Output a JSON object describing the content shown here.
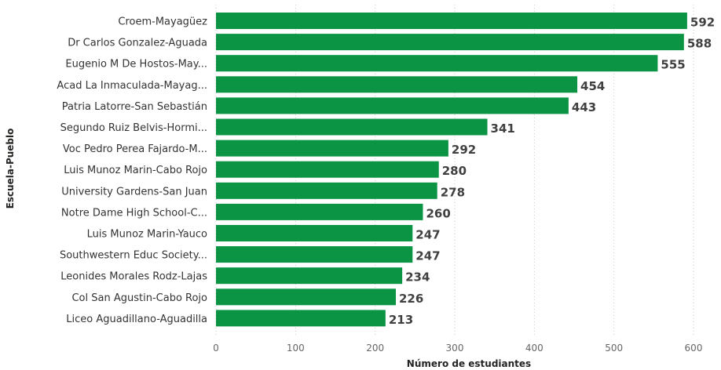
{
  "chart_data": {
    "type": "bar",
    "orientation": "horizontal",
    "categories": [
      "Croem-Mayagüez",
      "Dr Carlos Gonzalez-Aguada",
      "Eugenio M De Hostos-May...",
      "Acad La Inmaculada-Mayag...",
      "Patria Latorre-San Sebastián",
      "Segundo Ruiz Belvis-Hormi...",
      "Voc Pedro Perea Fajardo-M...",
      "Luis Munoz Marin-Cabo Rojo",
      "University Gardens-San Juan",
      "Notre Dame High School-C...",
      "Luis Munoz Marin-Yauco",
      "Southwestern Educ Society...",
      "Leonides Morales Rodz-Lajas",
      "Col San Agustin-Cabo Rojo",
      "Liceo Aguadillano-Aguadilla"
    ],
    "values": [
      592,
      588,
      555,
      454,
      443,
      341,
      292,
      280,
      278,
      260,
      247,
      247,
      234,
      226,
      213
    ],
    "xlabel": "Número de estudiantes",
    "ylabel": "Escuela-Pueblo",
    "xlim": [
      0,
      600
    ],
    "xticks": [
      0,
      100,
      200,
      300,
      400,
      500,
      600
    ],
    "grid": "vertical-dotted",
    "data_labels": true,
    "bar_color": "#0B9444"
  }
}
